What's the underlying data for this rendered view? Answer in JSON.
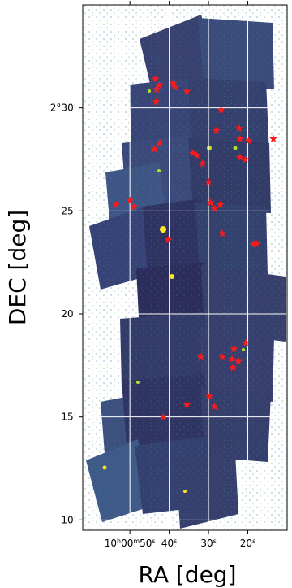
{
  "chart_data": {
    "type": "scatter",
    "title": "",
    "xlabel": "RA [deg]",
    "ylabel": "DEC [deg]",
    "x_unit": "seconds of RA after 10h00m",
    "y_unit": "arcminutes of DEC after 2°",
    "xlim": [
      62,
      10
    ],
    "ylim": [
      9.5,
      35
    ],
    "x_ticks": [
      {
        "value": 50,
        "label_parts": [
          "10",
          "h",
          "00",
          "m",
          "50",
          "s"
        ]
      },
      {
        "value": 40,
        "label_parts": [
          "40",
          "s"
        ]
      },
      {
        "value": 30,
        "label_parts": [
          "30",
          "s"
        ]
      },
      {
        "value": 20,
        "label_parts": [
          "20",
          "s"
        ]
      }
    ],
    "y_ticks": [
      {
        "value": 30,
        "label": "2°30'"
      },
      {
        "value": 25,
        "label": "25'"
      },
      {
        "value": 20,
        "label": "20'"
      },
      {
        "value": 15,
        "label": "15'"
      },
      {
        "value": 10,
        "label": "10'"
      }
    ],
    "grid": true,
    "background_color": "#2d1a52",
    "marker_color": "#ff1a1a",
    "series": [
      {
        "name": "",
        "marker": "star",
        "points": [
          [
            43.5,
            31.4
          ],
          [
            42.5,
            31.1
          ],
          [
            43.2,
            30.9
          ],
          [
            39.0,
            31.2
          ],
          [
            38.5,
            31.0
          ],
          [
            35.5,
            30.8
          ],
          [
            43.3,
            30.3
          ],
          [
            26.8,
            29.9
          ],
          [
            22.2,
            29.0
          ],
          [
            28.0,
            28.9
          ],
          [
            22.0,
            28.5
          ],
          [
            13.5,
            28.5
          ],
          [
            19.8,
            28.4
          ],
          [
            42.4,
            28.3
          ],
          [
            43.7,
            28.0
          ],
          [
            34.0,
            27.8
          ],
          [
            33.0,
            27.7
          ],
          [
            22.0,
            27.6
          ],
          [
            20.6,
            27.5
          ],
          [
            31.5,
            27.3
          ],
          [
            30.0,
            26.4
          ],
          [
            50.0,
            25.5
          ],
          [
            49.0,
            25.2
          ],
          [
            53.5,
            25.3
          ],
          [
            29.5,
            25.4
          ],
          [
            27.0,
            25.3
          ],
          [
            28.5,
            25.1
          ],
          [
            26.5,
            23.9
          ],
          [
            40.2,
            23.6
          ],
          [
            18.5,
            23.4
          ],
          [
            17.8,
            23.4
          ],
          [
            20.5,
            18.6
          ],
          [
            23.5,
            18.3
          ],
          [
            26.5,
            17.9
          ],
          [
            22.4,
            17.7
          ],
          [
            24.0,
            17.8
          ],
          [
            32.0,
            17.9
          ],
          [
            23.8,
            17.4
          ],
          [
            29.8,
            16.0
          ],
          [
            28.5,
            15.5
          ],
          [
            35.5,
            15.6
          ],
          [
            41.5,
            15.0
          ]
        ]
      }
    ]
  }
}
